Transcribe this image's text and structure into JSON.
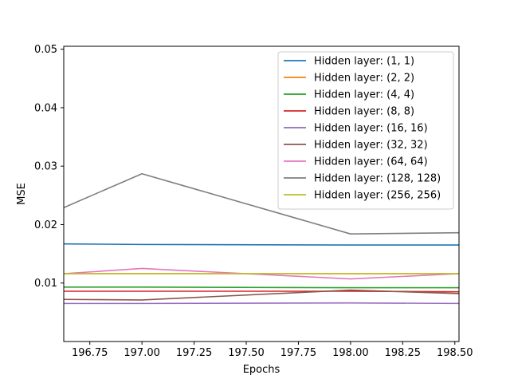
{
  "chart_data": {
    "type": "line",
    "xlabel": "Epochs",
    "ylabel": "MSE",
    "xlim": [
      196.625,
      198.52
    ],
    "ylim": [
      0.0,
      0.0505
    ],
    "xticks": [
      196.75,
      197.0,
      197.25,
      197.5,
      197.75,
      198.0,
      198.25,
      198.5
    ],
    "xtick_labels": [
      "196.75",
      "197.00",
      "197.25",
      "197.50",
      "197.75",
      "198.00",
      "198.25",
      "198.50"
    ],
    "yticks": [
      0.01,
      0.02,
      0.03,
      0.04,
      0.05
    ],
    "ytick_labels": [
      "0.01",
      "0.02",
      "0.03",
      "0.04",
      "0.05"
    ],
    "grid": false,
    "legend_position": "top-right",
    "x": [
      196.625,
      197.0,
      198.0,
      198.52
    ],
    "series": [
      {
        "name": "Hidden layer: (1, 1)",
        "color": "#1f77b4",
        "values": [
          0.0167,
          0.0166,
          0.0165,
          0.0165
        ]
      },
      {
        "name": "Hidden layer: (2, 2)",
        "color": "#ff7f0e",
        "values": [
          0.0116,
          0.0116,
          0.0116,
          0.0116
        ]
      },
      {
        "name": "Hidden layer: (4, 4)",
        "color": "#2ca02c",
        "values": [
          0.0093,
          0.0093,
          0.0092,
          0.0092
        ]
      },
      {
        "name": "Hidden layer: (8, 8)",
        "color": "#d62728",
        "values": [
          0.0086,
          0.0086,
          0.0086,
          0.0085
        ]
      },
      {
        "name": "Hidden layer: (16, 16)",
        "color": "#9467bd",
        "values": [
          0.0065,
          0.0065,
          0.0066,
          0.0065
        ]
      },
      {
        "name": "Hidden layer: (32, 32)",
        "color": "#8c564b",
        "values": [
          0.0072,
          0.0071,
          0.0088,
          0.0082
        ]
      },
      {
        "name": "Hidden layer: (64, 64)",
        "color": "#e377c2",
        "values": [
          0.0116,
          0.0125,
          0.0107,
          0.0116
        ]
      },
      {
        "name": "Hidden layer: (128, 128)",
        "color": "#7f7f7f",
        "values": [
          0.0229,
          0.0287,
          0.0184,
          0.0186
        ]
      },
      {
        "name": "Hidden layer: (256, 256)",
        "color": "#bcbd22",
        "values": [
          0.0116,
          0.0116,
          0.0116,
          0.0116
        ]
      }
    ]
  }
}
